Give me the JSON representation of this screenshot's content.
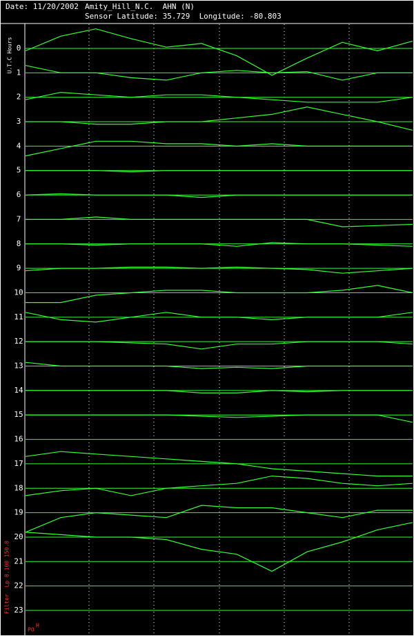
{
  "chart_data": {
    "type": "helicorder",
    "header": {
      "date": "Date: 11/20/2002",
      "station": "Amity_Hill_N.C.  AHN (N)",
      "location": "Sensor Latitude: 35.729  Longitude: -80.803"
    },
    "ylabel": "U.T.C Hours",
    "filter_label": "Filter  Lp 0.100 150.0",
    "corner_label": "PO",
    "corner_sup": "H",
    "ylim": [
      -0.99,
      23.99
    ],
    "yticks": [
      0,
      1,
      2,
      3,
      4,
      5,
      6,
      7,
      8,
      9,
      10,
      11,
      12,
      13,
      14,
      15,
      16,
      17,
      18,
      19,
      20,
      21,
      22,
      23
    ],
    "grid": true,
    "color": "#33ff33",
    "series": [
      {
        "values": [
          0.1,
          -0.5,
          -0.8,
          -0.4,
          -0.05,
          -0.2,
          0.3,
          1.1,
          0.4,
          -0.25,
          0.1,
          -0.3
        ]
      },
      {
        "values": [
          -0.3,
          0,
          0,
          0.2,
          0.3,
          0,
          -0.1,
          0,
          -0.05,
          0.3,
          0,
          0
        ]
      },
      {
        "values": [
          0.1,
          -0.2,
          -0.1,
          0,
          -0.1,
          -0.1,
          0,
          0.1,
          0.2,
          0.2,
          0.2,
          0
        ]
      },
      {
        "values": [
          0,
          0,
          0.1,
          0.1,
          0,
          0,
          -0.15,
          -0.3,
          -0.6,
          -0.3,
          0,
          0.35
        ]
      },
      {
        "values": [
          0.4,
          0.1,
          -0.2,
          -0.2,
          -0.1,
          -0.1,
          0,
          -0.1,
          0,
          0,
          0,
          0
        ]
      },
      {
        "values": [
          0,
          0,
          0,
          0.05,
          0,
          0,
          0,
          0,
          0,
          0,
          0,
          0
        ]
      },
      {
        "values": [
          0,
          -0.05,
          0,
          0,
          0,
          0.1,
          0,
          0,
          0,
          0,
          0,
          0
        ]
      },
      {
        "values": [
          0,
          0,
          -0.1,
          0,
          0,
          0,
          0,
          0,
          0,
          0.3,
          0.25,
          0.2
        ]
      },
      {
        "values": [
          0,
          0,
          0.05,
          0,
          0,
          0,
          0.1,
          -0.05,
          0,
          0,
          0.05,
          0.1
        ]
      },
      {
        "values": [
          0.1,
          0,
          0,
          -0.05,
          -0.05,
          0,
          -0.05,
          0,
          0.05,
          0.2,
          0.1,
          0
        ]
      },
      {
        "values": [
          0.4,
          0.4,
          0.1,
          0,
          -0.1,
          -0.1,
          0,
          0,
          0,
          -0.1,
          -0.3,
          0
        ]
      },
      {
        "values": [
          -0.2,
          0.1,
          0.2,
          0,
          -0.2,
          0,
          0,
          0.1,
          0,
          0,
          0,
          -0.2
        ]
      },
      {
        "values": [
          0,
          0,
          0,
          0.05,
          0.1,
          0.3,
          0.1,
          0.1,
          0,
          0,
          0,
          0.1
        ]
      },
      {
        "values": [
          -0.15,
          0,
          0,
          0,
          0,
          0.1,
          0.05,
          0.1,
          0,
          0,
          0,
          0
        ]
      },
      {
        "values": [
          0,
          0,
          0,
          0,
          0,
          0.1,
          0.1,
          0,
          0.05,
          0,
          0,
          0
        ]
      },
      {
        "values": [
          0,
          0,
          0,
          0,
          0,
          0.05,
          0.1,
          0.05,
          0,
          0,
          0,
          0.3
        ]
      },
      {
        "values": [
          0.7,
          0.5,
          0.6,
          0.7,
          0.8,
          0.9,
          1.0,
          1.2,
          1.3,
          1.4,
          1.5,
          1.5
        ]
      },
      {
        "values": [
          1.3,
          1.1,
          1.0,
          1.3,
          1.0,
          0.9,
          0.8,
          0.5,
          0.6,
          0.8,
          0.9,
          0.8
        ]
      },
      {
        "values": [
          1.8,
          1.2,
          1.0,
          1.1,
          1.2,
          0.7,
          0.8,
          0.8,
          1.0,
          1.2,
          0.9,
          0.9
        ]
      },
      {
        "values": [
          0.8,
          0.9,
          1.0,
          1.0,
          1.1,
          1.5,
          1.7,
          2.4,
          1.6,
          1.2,
          0.7,
          0.4
        ]
      }
    ]
  }
}
